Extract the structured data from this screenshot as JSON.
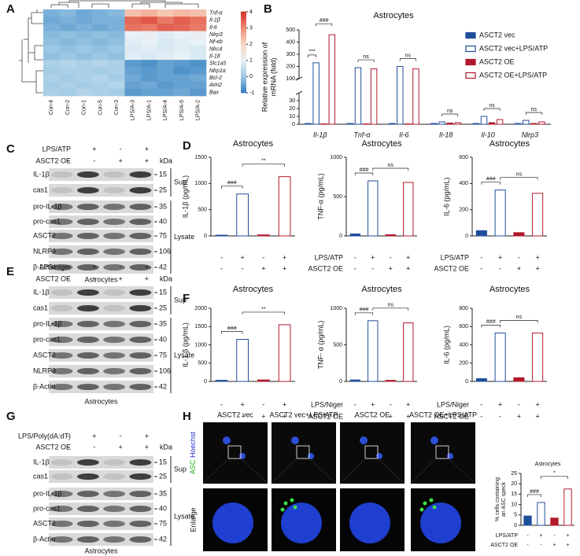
{
  "panel_labels": [
    "A",
    "B",
    "C",
    "D",
    "E",
    "F",
    "G",
    "H"
  ],
  "heatmap": {
    "rows": [
      "Tnf-α",
      "Il-1β",
      "Il-6",
      "Nlrp3",
      "Nf-κb",
      "Nlrc4",
      "Il-18",
      "Slc1a5",
      "Nlrp1α",
      "Bcl-2",
      "Aim2",
      "Bax"
    ],
    "columns": [
      "Con-4",
      "Con-2",
      "Con-1",
      "Con-5",
      "Con-3",
      "LPS/A-3",
      "LPS/A-1",
      "LPS/A-4",
      "LPS/A-5",
      "LPS/A-2"
    ],
    "values": [
      [
        -0.3,
        -0.2,
        -0.4,
        -0.3,
        -0.2,
        2.3,
        2.5,
        2.2,
        2.4,
        2.3
      ],
      [
        -0.4,
        -0.3,
        -0.4,
        -0.3,
        -0.3,
        3.4,
        3.6,
        3.2,
        3.5,
        3.3
      ],
      [
        -0.3,
        -0.4,
        -0.3,
        -0.4,
        -0.3,
        3.3,
        3.2,
        3.5,
        3.4,
        3.2
      ],
      [
        -0.2,
        -0.1,
        -0.2,
        -0.1,
        -0.2,
        1.0,
        1.1,
        0.9,
        1.0,
        1.1
      ],
      [
        -0.1,
        -0.2,
        -0.1,
        -0.2,
        -0.1,
        0.9,
        1.0,
        0.8,
        0.9,
        1.0
      ],
      [
        0,
        -0.1,
        0,
        -0.1,
        0,
        0.8,
        0.9,
        0.8,
        0.9,
        0.8
      ],
      [
        -0.1,
        0,
        -0.1,
        0,
        -0.1,
        0.9,
        0.8,
        0.9,
        1.0,
        0.8
      ],
      [
        0.2,
        0.3,
        0.2,
        0.3,
        0.2,
        -0.6,
        -0.7,
        -0.5,
        -0.6,
        -0.7
      ],
      [
        0.1,
        0.2,
        0.2,
        0.1,
        0.2,
        -0.5,
        -0.6,
        -0.5,
        -0.7,
        -0.6
      ],
      [
        0.2,
        0.1,
        0.2,
        0.3,
        0.1,
        -0.4,
        -0.6,
        -0.5,
        -0.5,
        -0.4
      ],
      [
        0.1,
        0.2,
        0.1,
        0.2,
        0.3,
        -0.5,
        -0.4,
        -0.6,
        -0.5,
        -0.5
      ],
      [
        0.2,
        0.1,
        0.3,
        0.2,
        0.1,
        -0.6,
        -0.5,
        -0.5,
        -0.4,
        -0.6
      ]
    ],
    "colorbar_lim": [
      -1,
      4
    ],
    "colorbar_ticks": [
      4,
      3,
      2,
      1,
      0,
      -1
    ]
  },
  "blots": [
    {
      "treatments": [
        {
          "name": "LPS/ATP",
          "signs": [
            "-",
            "+",
            "-",
            "+"
          ]
        },
        {
          "name": "ASCT2 OE",
          "signs": [
            "-",
            "-",
            "+",
            "+"
          ]
        }
      ],
      "unit": "kDa",
      "sections": [
        {
          "label": "Sup",
          "bands": [
            {
              "name": "IL-1β",
              "kda": 15
            },
            {
              "name": "cas1",
              "kda": 25
            }
          ]
        },
        {
          "label": "Lysate",
          "bands": [
            {
              "name": "pro-IL-1β",
              "kda": 35
            },
            {
              "name": "pro-cas1",
              "kda": 40
            },
            {
              "name": "ASCT2",
              "kda": 75
            },
            {
              "name": "NLRP3",
              "kda": 106
            },
            {
              "name": "β-Actin",
              "kda": 42
            }
          ]
        }
      ],
      "caption": "Astrocytes"
    },
    {
      "treatments": [
        {
          "name": "LPS/niger",
          "signs": [
            "-",
            "+",
            "-",
            "+"
          ]
        },
        {
          "name": "ASCT2 OE",
          "signs": [
            "-",
            "-",
            "+",
            "+"
          ]
        }
      ],
      "unit": "kDa",
      "sections": [
        {
          "label": "Sup",
          "bands": [
            {
              "name": "IL-1β",
              "kda": 15
            },
            {
              "name": "cas1",
              "kda": 25
            }
          ]
        },
        {
          "label": "Lysate",
          "bands": [
            {
              "name": "pro-IL-1β",
              "kda": 35
            },
            {
              "name": "pro-cas1",
              "kda": 40
            },
            {
              "name": "ASCT2",
              "kda": 75
            },
            {
              "name": "NLRP3",
              "kda": 106
            },
            {
              "name": "β-Actin",
              "kda": 42
            }
          ]
        }
      ],
      "caption": "Astrocytes"
    },
    {
      "treatments": [
        {
          "name": "LPS/Poly(dA:dT)",
          "signs": [
            "-",
            "+",
            "-",
            "+"
          ]
        },
        {
          "name": "ASCT2 OE",
          "signs": [
            "-",
            "-",
            "+",
            "+"
          ]
        }
      ],
      "unit": "kDa",
      "sections": [
        {
          "label": "Sup",
          "bands": [
            {
              "name": "IL-1β",
              "kda": 15
            },
            {
              "name": "cas1",
              "kda": 25
            }
          ]
        },
        {
          "label": "Lysate",
          "bands": [
            {
              "name": "pro-IL-1β",
              "kda": 35
            },
            {
              "name": "pro-cas1",
              "kda": 40
            },
            {
              "name": "ASCT2",
              "kda": 75
            },
            {
              "name": "β-Actin",
              "kda": 42
            }
          ]
        }
      ],
      "caption": "Astrocytes"
    }
  ],
  "microscopy": {
    "columns": [
      "ASCT2 vec",
      "ASCT2 vec+LPS/ATP",
      "ASCT2 OE",
      "ASCT2 OE+LPS/ATP"
    ],
    "channel_labels": [
      "ASC",
      "Hoechst"
    ],
    "row_label": "Enlarge"
  },
  "chart_data": [
    {
      "type": "bar",
      "title": "Astrocytes",
      "y_label": [
        "Relative expression of",
        "mRNA (fold)"
      ],
      "categories": [
        "Il-1β",
        "Tnf-α",
        "Il-6",
        "Il-18",
        "Il-10",
        "Nlrp3"
      ],
      "series": [
        {
          "name": "ASCT2 vec",
          "color": "#1f4e9c",
          "fill": "#1f4e9c",
          "values": [
            1,
            1,
            1,
            1,
            1,
            1
          ]
        },
        {
          "name": "ASCT2 vec+LPS/ATP",
          "color": "#1f4e9c",
          "fill": "#ffffff",
          "values": [
            230,
            190,
            200,
            3,
            10,
            5
          ]
        },
        {
          "name": "ASCT2 OE",
          "color": "#b2182b",
          "fill": "#b2182b",
          "values": [
            0.5,
            0.5,
            0.5,
            1.5,
            2,
            1
          ]
        },
        {
          "name": "ASCT2 OE+LPS/ATP",
          "color": "#b2182b",
          "fill": "#ffffff",
          "values": [
            460,
            180,
            180,
            2,
            6,
            3
          ]
        }
      ],
      "annotations": [
        [
          "***",
          "###"
        ],
        [
          "ns"
        ],
        [
          "ns"
        ],
        [
          "ns"
        ],
        [
          "ns"
        ],
        [
          "ns"
        ]
      ],
      "ylim": [
        0,
        500
      ],
      "axis_break": [
        40,
        100
      ],
      "yticks": [
        0,
        10,
        20,
        30,
        100,
        200,
        300,
        400,
        500
      ]
    },
    {
      "type": "bar",
      "title": "Astrocytes",
      "y_label": [
        "IL-1β (pg/mL)"
      ],
      "values": [
        15,
        800,
        20,
        1130
      ],
      "colors": [
        "#1f4e9c",
        "#1f4e9c",
        "#b2182b",
        "#b2182b"
      ],
      "fills": [
        "#1f4e9c",
        "#ffffff",
        "#b2182b",
        "#ffffff"
      ],
      "ylim": [
        0,
        1500
      ],
      "yticks": [
        0,
        500,
        1000,
        1500
      ],
      "annotations": [
        "###",
        "**"
      ],
      "signs": [
        [
          "-",
          "+",
          "-",
          "+"
        ],
        [
          "-",
          "-",
          "+",
          "+"
        ]
      ]
    },
    {
      "type": "bar",
      "title": "Astrocytes",
      "y_label": [
        "TNF-α (pg/mL)"
      ],
      "values": [
        25,
        700,
        15,
        680
      ],
      "colors": [
        "#1f4e9c",
        "#1f4e9c",
        "#b2182b",
        "#b2182b"
      ],
      "fills": [
        "#1f4e9c",
        "#ffffff",
        "#b2182b",
        "#ffffff"
      ],
      "ylim": [
        0,
        1000
      ],
      "yticks": [
        0,
        500,
        1000
      ],
      "annotations": [
        "###",
        "ns"
      ],
      "treatments": [
        "LPS/ATP",
        "ASCT2 OE"
      ],
      "signs": [
        [
          "-",
          "+",
          "-",
          "+"
        ],
        [
          "-",
          "-",
          "+",
          "+"
        ]
      ]
    },
    {
      "type": "bar",
      "title": "Astrocytes",
      "y_label": [
        "IL-6 (pg/mL)"
      ],
      "values": [
        40,
        350,
        25,
        325
      ],
      "colors": [
        "#1f4e9c",
        "#1f4e9c",
        "#b2182b",
        "#b2182b"
      ],
      "fills": [
        "#1f4e9c",
        "#ffffff",
        "#b2182b",
        "#ffffff"
      ],
      "ylim": [
        0,
        600
      ],
      "yticks": [
        0,
        200,
        400,
        600
      ],
      "annotations": [
        "###",
        "ns"
      ],
      "treatments": [
        "LPS/ATP",
        "ASCT2 OE"
      ],
      "signs": [
        [
          "-",
          "+",
          "-",
          "+"
        ],
        [
          "-",
          "-",
          "+",
          "+"
        ]
      ]
    },
    {
      "type": "bar",
      "title": "Astrocytes",
      "y_label": [
        "IL-1 β (pg/mL)"
      ],
      "values": [
        30,
        1150,
        40,
        1550
      ],
      "colors": [
        "#1f4e9c",
        "#1f4e9c",
        "#b2182b",
        "#b2182b"
      ],
      "fills": [
        "#1f4e9c",
        "#ffffff",
        "#b2182b",
        "#ffffff"
      ],
      "ylim": [
        0,
        2000
      ],
      "yticks": [
        0,
        500,
        1000,
        1500,
        2000
      ],
      "annotations": [
        "###",
        "**"
      ],
      "signs": [
        [
          "-",
          "+",
          "-",
          "+"
        ],
        [
          "-",
          "-",
          "+",
          "+"
        ]
      ]
    },
    {
      "type": "bar",
      "title": "Astrocytes",
      "y_label": [
        "TNF- α (pg/mL)"
      ],
      "values": [
        20,
        830,
        15,
        800
      ],
      "colors": [
        "#1f4e9c",
        "#1f4e9c",
        "#b2182b",
        "#b2182b"
      ],
      "fills": [
        "#1f4e9c",
        "#ffffff",
        "#b2182b",
        "#ffffff"
      ],
      "ylim": [
        0,
        1000
      ],
      "yticks": [
        0,
        500,
        1000
      ],
      "annotations": [
        "###",
        "ns"
      ],
      "treatments": [
        "LPS/Niger",
        "ASCT2 OE"
      ],
      "signs": [
        [
          "-",
          "+",
          "-",
          "+"
        ],
        [
          "-",
          "-",
          "+",
          "+"
        ]
      ]
    },
    {
      "type": "bar",
      "title": "Astrocytes",
      "y_label": [
        "IL-6 (pg/mL)"
      ],
      "values": [
        30,
        530,
        40,
        530
      ],
      "colors": [
        "#1f4e9c",
        "#1f4e9c",
        "#b2182b",
        "#b2182b"
      ],
      "fills": [
        "#1f4e9c",
        "#ffffff",
        "#b2182b",
        "#ffffff"
      ],
      "ylim": [
        0,
        800
      ],
      "yticks": [
        0,
        200,
        400,
        600,
        800
      ],
      "annotations": [
        "###",
        "ns"
      ],
      "treatments": [
        "LPS/Niger",
        "ASCT2 OE"
      ],
      "signs": [
        [
          "-",
          "+",
          "-",
          "+"
        ],
        [
          "-",
          "-",
          "+",
          "+"
        ]
      ]
    },
    {
      "type": "bar",
      "title": "Astrocytes",
      "y_label": [
        "% cells containing",
        "an ASC speck"
      ],
      "values": [
        4.5,
        11,
        3.5,
        17.5
      ],
      "colors": [
        "#1f4e9c",
        "#1f4e9c",
        "#b2182b",
        "#b2182b"
      ],
      "fills": [
        "#1f4e9c",
        "#ffffff",
        "#b2182b",
        "#ffffff"
      ],
      "ylim": [
        0,
        25
      ],
      "yticks": [
        0,
        5,
        10,
        15,
        20,
        25
      ],
      "annotations": [
        "###",
        "*"
      ],
      "treatments": [
        "LPS/ATP",
        "ASCT2 OE"
      ],
      "signs": [
        [
          "-",
          "+",
          "-",
          "+"
        ],
        [
          "-",
          "-",
          "+",
          "+"
        ]
      ]
    }
  ]
}
